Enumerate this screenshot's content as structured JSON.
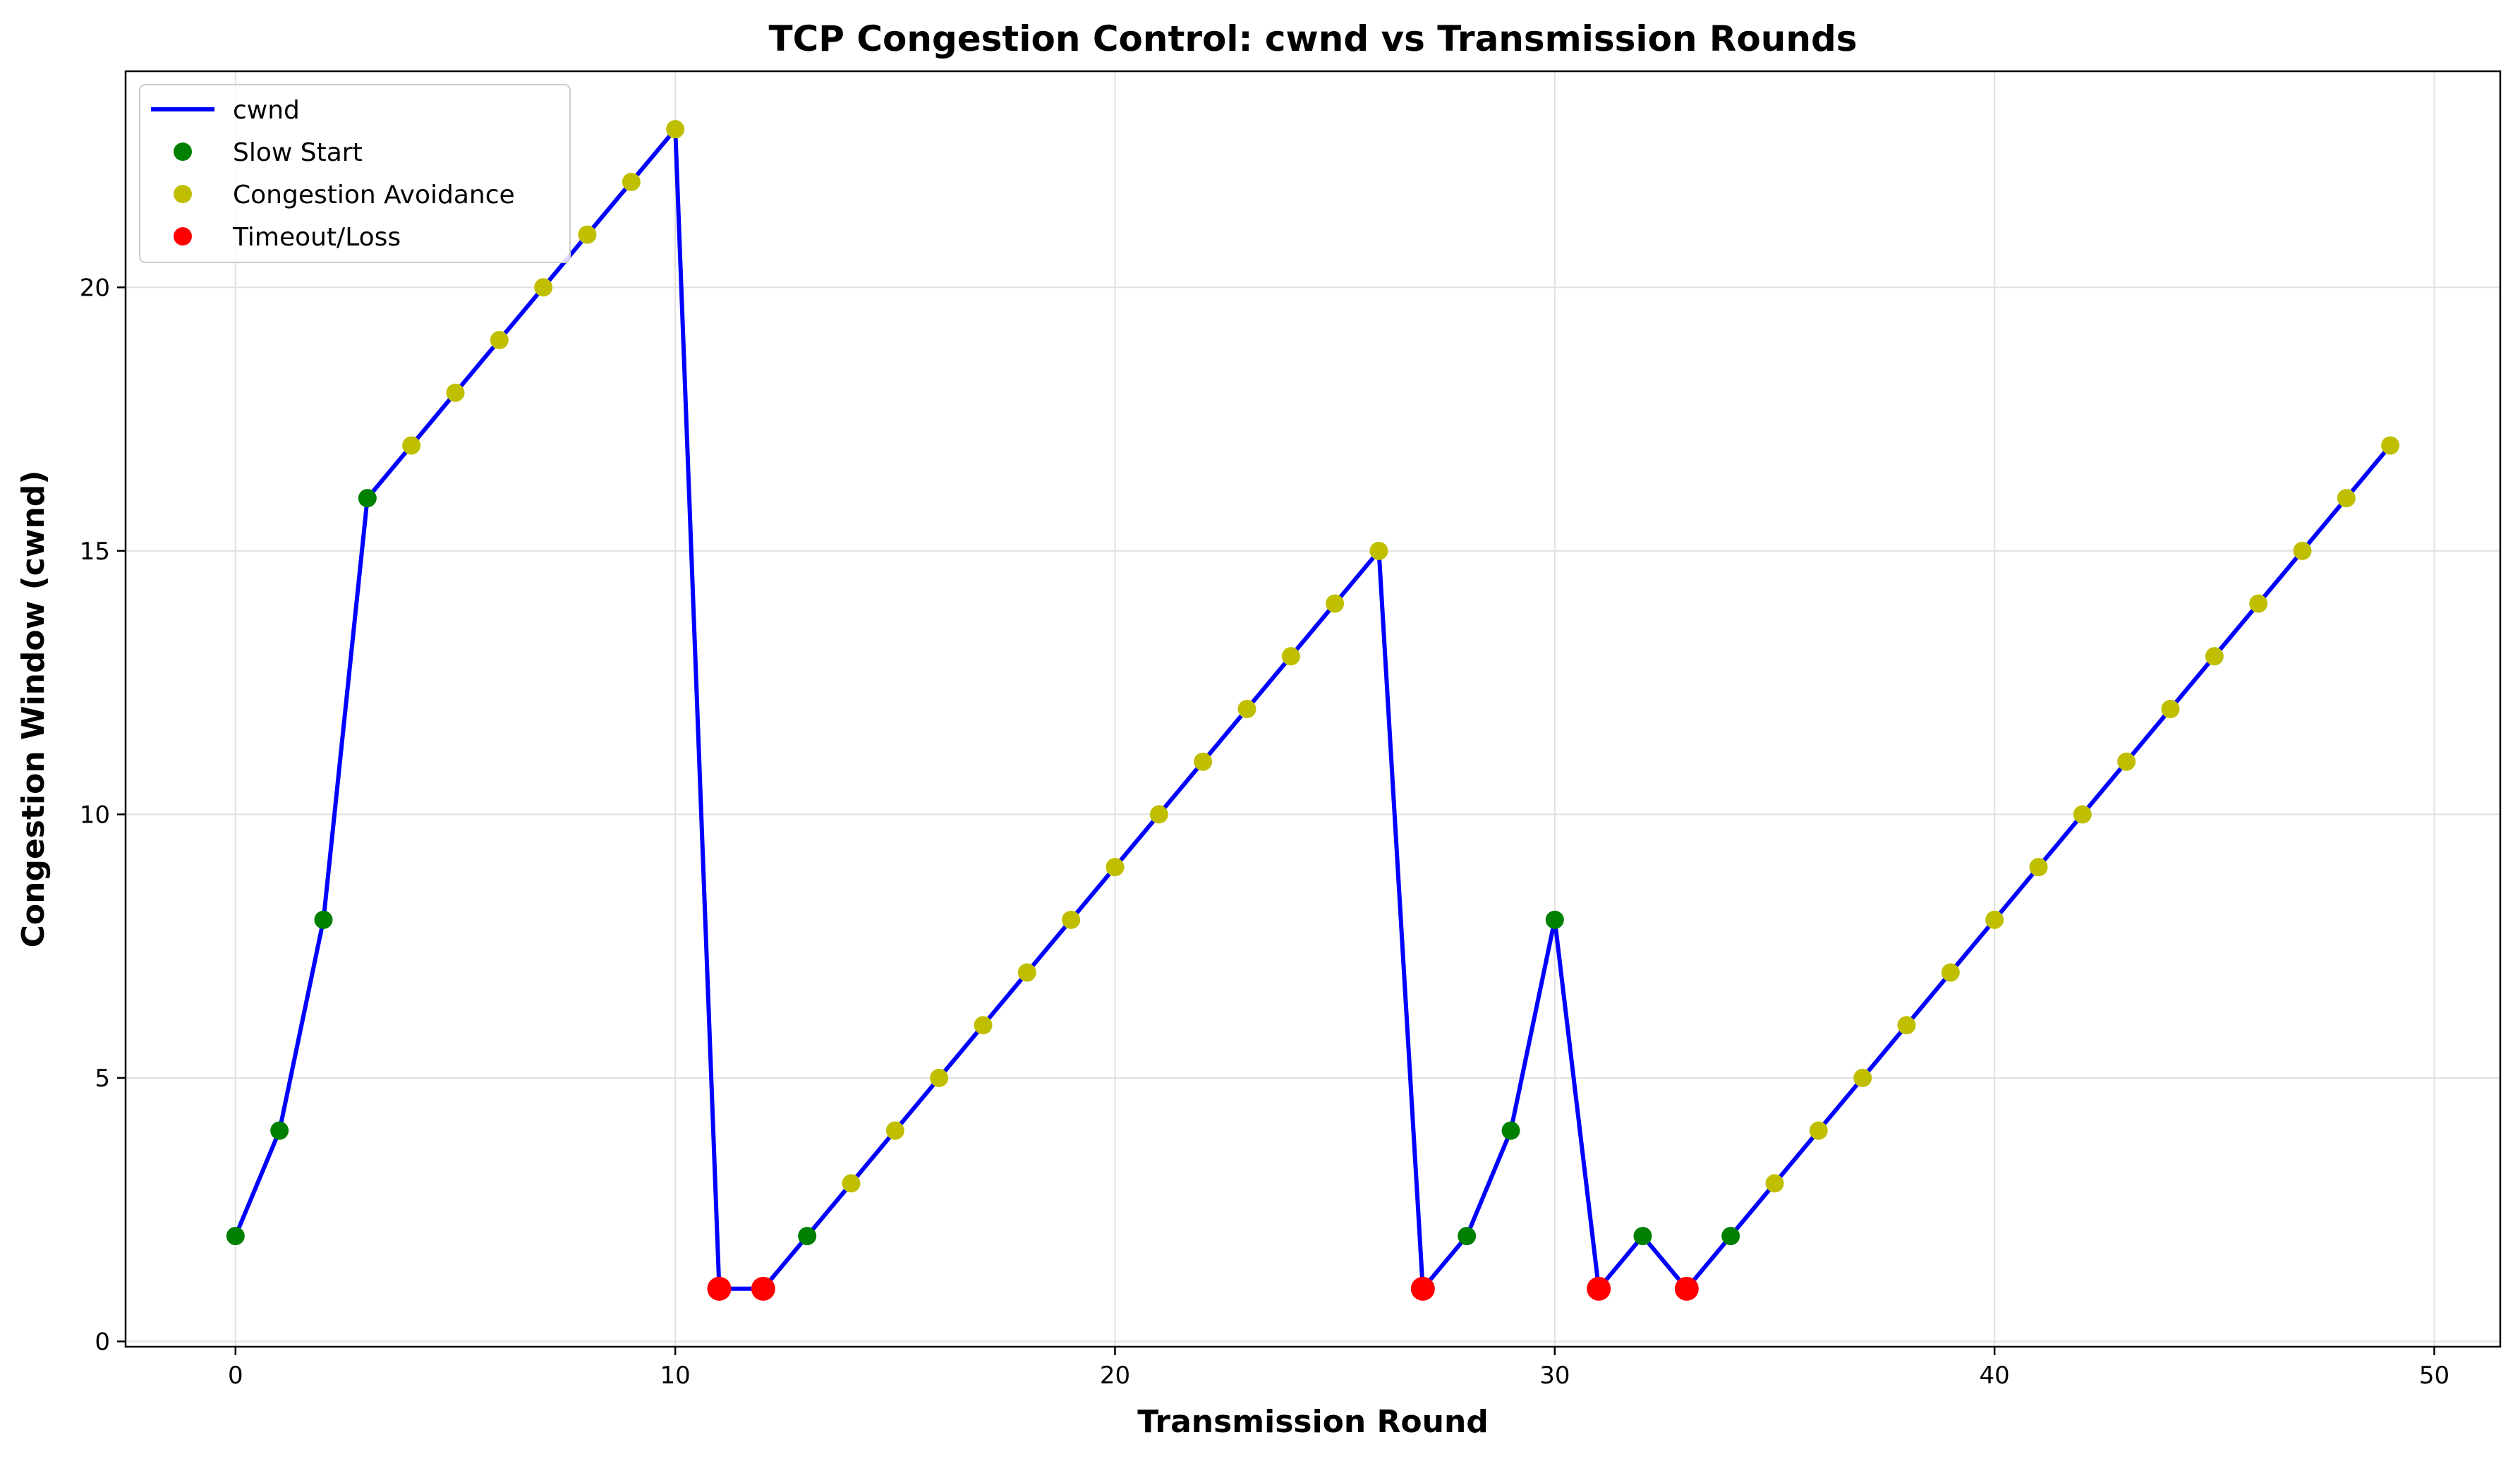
{
  "chart_data": {
    "type": "line",
    "title": "TCP Congestion Control: cwnd vs Transmission Rounds",
    "xlabel": "Transmission Round",
    "ylabel": "Congestion Window (cwnd)",
    "xlim": [
      -2.5,
      51.5
    ],
    "ylim": [
      -0.1,
      24.1
    ],
    "xticks": [
      0,
      10,
      20,
      30,
      40,
      50
    ],
    "yticks": [
      0,
      5,
      10,
      15,
      20
    ],
    "grid": true,
    "legend_position": "top-left",
    "x": [
      0,
      1,
      2,
      3,
      4,
      5,
      6,
      7,
      8,
      9,
      10,
      11,
      12,
      13,
      14,
      15,
      16,
      17,
      18,
      19,
      20,
      21,
      22,
      23,
      24,
      25,
      26,
      27,
      28,
      29,
      30,
      31,
      32,
      33,
      34,
      35,
      36,
      37,
      38,
      39,
      40,
      41,
      42,
      43,
      44,
      45,
      46,
      47,
      48,
      49
    ],
    "y": [
      2,
      4,
      8,
      16,
      17,
      18,
      19,
      20,
      21,
      22,
      23,
      1,
      1,
      2,
      3,
      4,
      5,
      6,
      7,
      8,
      9,
      10,
      11,
      12,
      13,
      14,
      15,
      1,
      2,
      4,
      8,
      1,
      2,
      1,
      2,
      3,
      4,
      5,
      6,
      7,
      8,
      9,
      10,
      11,
      12,
      13,
      14,
      15,
      16,
      17
    ],
    "phase": [
      "ss",
      "ss",
      "ss",
      "ss",
      "ca",
      "ca",
      "ca",
      "ca",
      "ca",
      "ca",
      "ca",
      "loss",
      "loss",
      "ss",
      "ca",
      "ca",
      "ca",
      "ca",
      "ca",
      "ca",
      "ca",
      "ca",
      "ca",
      "ca",
      "ca",
      "ca",
      "ca",
      "loss",
      "ss",
      "ss",
      "ss",
      "loss",
      "ss",
      "loss",
      "ss",
      "ca",
      "ca",
      "ca",
      "ca",
      "ca",
      "ca",
      "ca",
      "ca",
      "ca",
      "ca",
      "ca",
      "ca",
      "ca",
      "ca",
      "ca"
    ],
    "series": [
      {
        "name": "cwnd",
        "kind": "line",
        "color": "#0000ff"
      },
      {
        "name": "Slow Start",
        "kind": "marker",
        "phase": "ss",
        "color": "#008000"
      },
      {
        "name": "Congestion Avoidance",
        "kind": "marker",
        "phase": "ca",
        "color": "#bfbf00"
      },
      {
        "name": "Timeout/Loss",
        "kind": "marker",
        "phase": "loss",
        "color": "#ff0000"
      }
    ]
  }
}
